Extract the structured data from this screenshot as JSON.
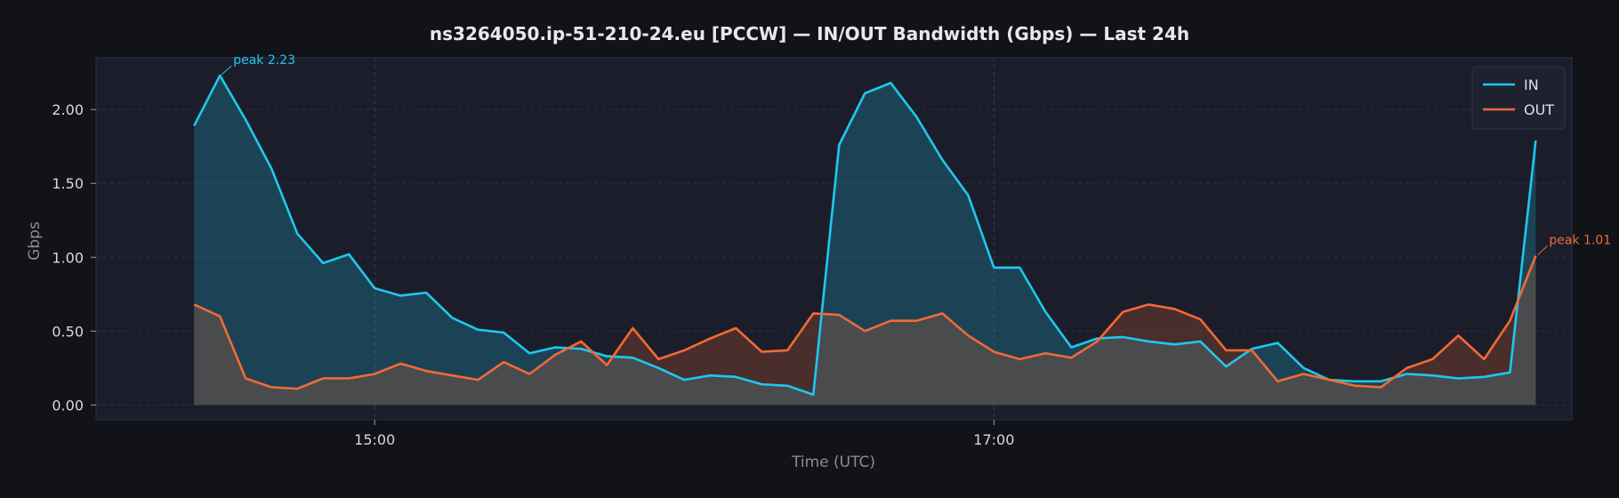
{
  "chart_data": {
    "type": "area",
    "title": "ns3264050.ip-51-210-24.eu [PCCW] — IN/OUT Bandwidth (Gbps) — Last 24h",
    "xlabel": "Time (UTC)",
    "ylabel": "Gbps",
    "xlim": [
      "14:06",
      "18:52"
    ],
    "ylim": [
      -0.1,
      2.35
    ],
    "y_ticks": [
      0.0,
      0.5,
      1.0,
      1.5,
      2.0
    ],
    "y_tick_labels": [
      "0.00",
      "0.50",
      "1.00",
      "1.50",
      "2.00"
    ],
    "x_ticks": [
      "15:00",
      "17:00"
    ],
    "grid": true,
    "legend": "top-right",
    "x_start": "14:25",
    "x_step_minutes": 5,
    "series": [
      {
        "name": "IN",
        "color": "#1ec8f0",
        "values": [
          1.89,
          2.23,
          1.93,
          1.6,
          1.16,
          0.96,
          1.02,
          0.79,
          0.74,
          0.76,
          0.59,
          0.51,
          0.49,
          0.35,
          0.39,
          0.38,
          0.33,
          0.32,
          0.25,
          0.17,
          0.2,
          0.19,
          0.14,
          0.13,
          0.07,
          1.76,
          2.11,
          2.18,
          1.95,
          1.66,
          1.42,
          0.93,
          0.93,
          0.63,
          0.39,
          0.45,
          0.46,
          0.43,
          0.41,
          0.43,
          0.26,
          0.38,
          0.42,
          0.25,
          0.17,
          0.16,
          0.16,
          0.21,
          0.2,
          0.18,
          0.19,
          0.22,
          1.79
        ]
      },
      {
        "name": "OUT",
        "color": "#f26a35",
        "values": [
          0.68,
          0.6,
          0.18,
          0.12,
          0.11,
          0.18,
          0.18,
          0.21,
          0.28,
          0.23,
          0.2,
          0.17,
          0.29,
          0.21,
          0.34,
          0.43,
          0.27,
          0.52,
          0.31,
          0.37,
          0.45,
          0.52,
          0.36,
          0.37,
          0.62,
          0.61,
          0.5,
          0.57,
          0.57,
          0.62,
          0.47,
          0.36,
          0.31,
          0.35,
          0.32,
          0.43,
          0.63,
          0.68,
          0.65,
          0.58,
          0.37,
          0.37,
          0.16,
          0.21,
          0.17,
          0.13,
          0.12,
          0.25,
          0.31,
          0.47,
          0.31,
          0.57,
          1.01
        ]
      }
    ],
    "annotations": [
      {
        "series": "IN",
        "text": "peak 2.23",
        "color": "#1ec8f0"
      },
      {
        "series": "OUT",
        "text": "peak 1.01",
        "color": "#f26a35"
      }
    ],
    "colors": {
      "background": "#111318",
      "plot_background": "#1b1e2a",
      "grid": "#2c3040",
      "overlap_fill": "#4a4b4e"
    }
  }
}
